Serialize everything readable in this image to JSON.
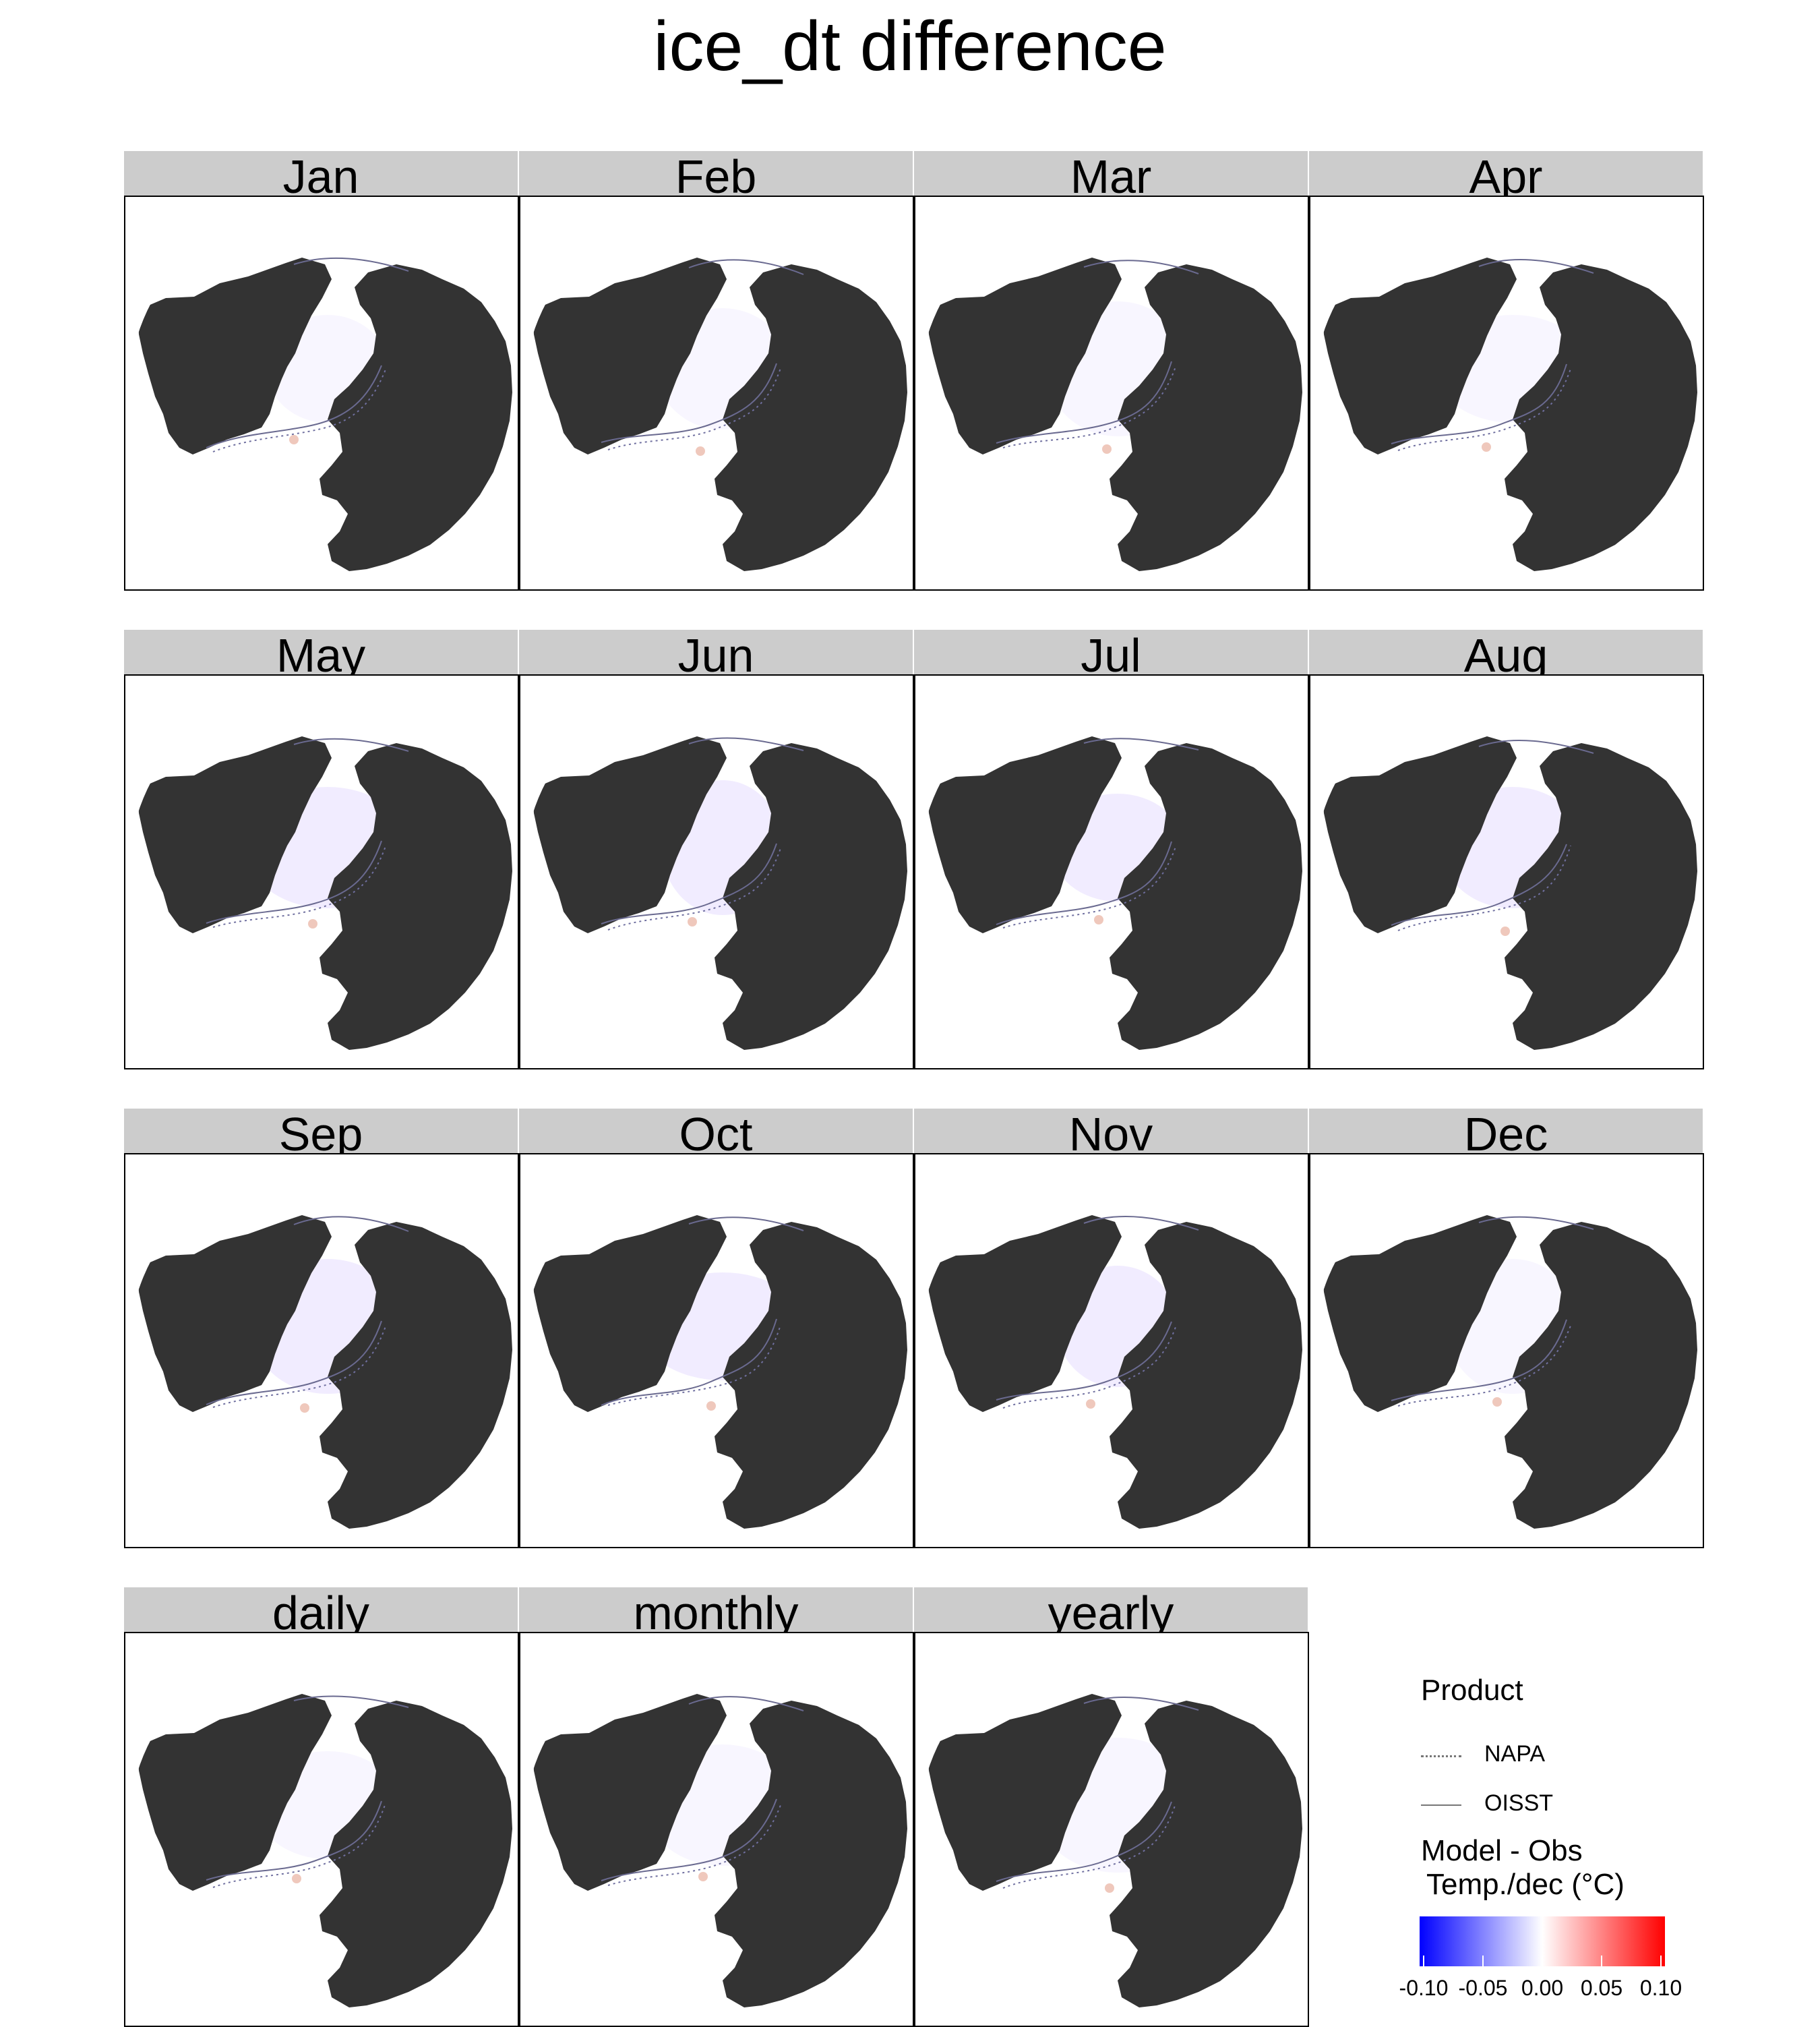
{
  "title": "ice_dt difference",
  "panels": [
    {
      "label": "Jan"
    },
    {
      "label": "Feb"
    },
    {
      "label": "Mar"
    },
    {
      "label": "Apr"
    },
    {
      "label": "May"
    },
    {
      "label": "Jun"
    },
    {
      "label": "Jul"
    },
    {
      "label": "Aug"
    },
    {
      "label": "Sep"
    },
    {
      "label": "Oct"
    },
    {
      "label": "Nov"
    },
    {
      "label": "Dec"
    },
    {
      "label": "daily"
    },
    {
      "label": "monthly"
    },
    {
      "label": "yearly"
    }
  ],
  "legend": {
    "title": "Product",
    "items": [
      {
        "label": "NAPA",
        "style": "dotted"
      },
      {
        "label": "OISST",
        "style": "solid"
      }
    ]
  },
  "colorbar": {
    "title_line1": "Model - Obs",
    "title_line2": "Temp./dec (°C)",
    "ticks": [
      "-0.10",
      "-0.05",
      "0.00",
      "0.05",
      "0.10"
    ],
    "range": [
      -0.1,
      0.1
    ],
    "colors": [
      "#0000ff",
      "#ffffff",
      "#ff0000"
    ]
  },
  "colors": {
    "land": "#333333",
    "strip": "#cccccc",
    "ocean": "#ffffff"
  },
  "chart_data": {
    "type": "heatmap",
    "title": "ice_dt difference",
    "panel_titles": [
      "Jan",
      "Feb",
      "Mar",
      "Apr",
      "May",
      "Jun",
      "Jul",
      "Aug",
      "Sep",
      "Oct",
      "Nov",
      "Dec",
      "daily",
      "monthly",
      "yearly"
    ],
    "projection": "north polar stereographic",
    "colorbar_range": [
      -0.1,
      0.1
    ],
    "colorbar_ticks": [
      -0.1,
      -0.05,
      0.0,
      0.05,
      0.1
    ],
    "series": [
      {
        "name": "NAPA",
        "line": "dotted"
      },
      {
        "name": "OISST",
        "line": "solid"
      }
    ]
  }
}
